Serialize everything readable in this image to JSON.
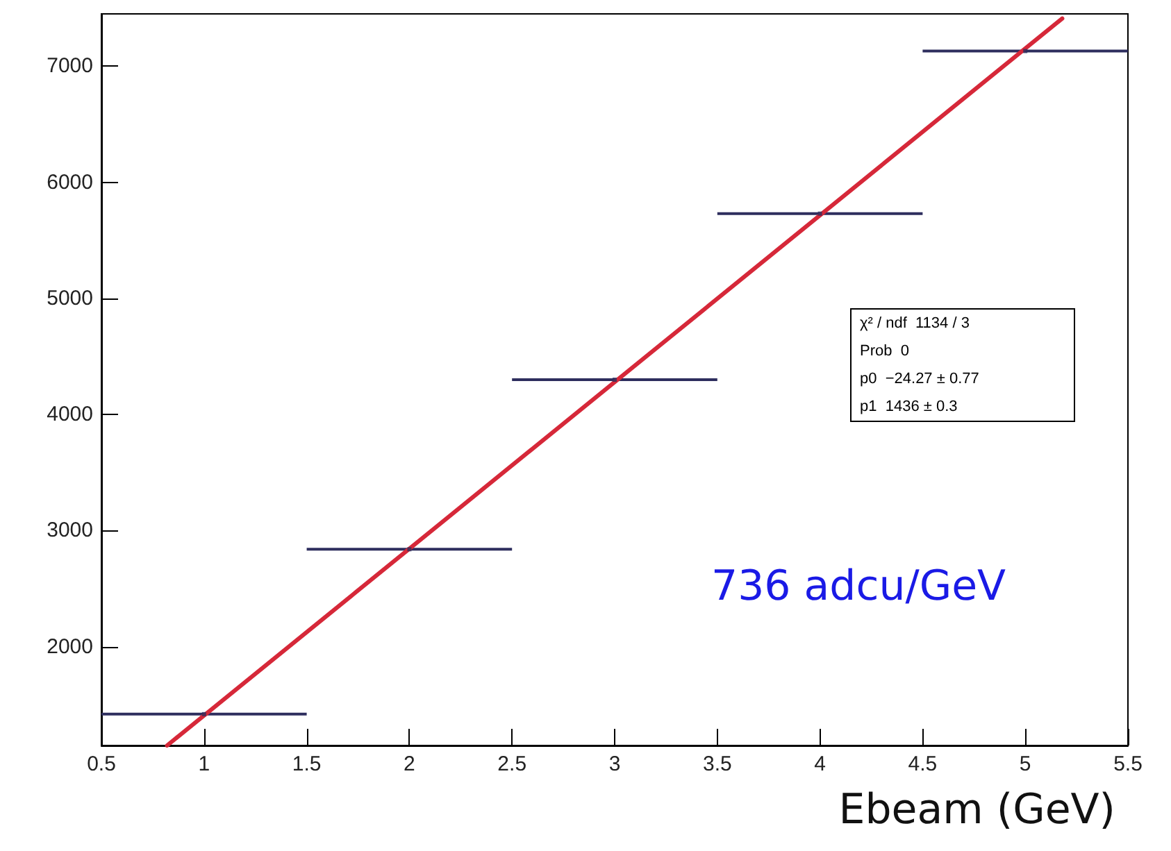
{
  "chart_data": {
    "type": "scatter",
    "xlabel": "Ebeam (GeV)",
    "series": [
      {
        "color": "#2e2e5e",
        "x": [
          1,
          2,
          3,
          4,
          5
        ],
        "values": [
          1420,
          2840,
          4300,
          5730,
          7130
        ],
        "xerrors": [
          0.5,
          0.5,
          0.5,
          0.5,
          0.5
        ],
        "marker": "square"
      },
      {
        "type": "line",
        "color": "#d62839",
        "x": [
          0.82,
          5.18
        ],
        "values": [
          1150,
          7410
        ],
        "marker": "none",
        "line_style": "solid"
      }
    ],
    "xlim": [
      0.5,
      5.5
    ],
    "xticks": [
      0.5,
      1,
      1.5,
      2,
      2.5,
      3,
      3.5,
      4,
      4.5,
      5,
      5.5
    ],
    "ylim": [
      1150,
      7450
    ],
    "yticks": [
      2000,
      3000,
      4000,
      5000,
      6000,
      7000
    ],
    "grid": false,
    "annotations": [
      "χ² / ndf  1134 / 3",
      "Prob  0",
      "p0  −24.27 ± 0.77",
      "p1  1436 ± 0.3",
      "736 adcu/GeV"
    ]
  }
}
